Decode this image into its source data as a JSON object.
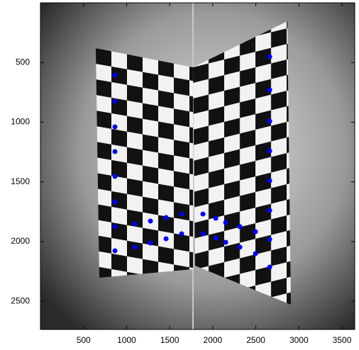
{
  "chart_data": {
    "type": "scatter",
    "x": [
      865,
      865,
      865,
      865,
      865,
      865,
      865,
      865,
      1096,
      1277,
      1458,
      1639,
      1096,
      1277,
      1458,
      1639,
      1886,
      2035,
      2150,
      2315,
      2496,
      1886,
      2035,
      2150,
      2315,
      2496,
      2661,
      2661,
      2661,
      2661,
      2661,
      2661,
      2661,
      2661
    ],
    "y": [
      605,
      825,
      1039,
      1246,
      1454,
      1668,
      1875,
      2077,
      1852,
      1828,
      1798,
      1769,
      2047,
      2012,
      1976,
      1935,
      1769,
      1804,
      1840,
      1875,
      1917,
      1935,
      1970,
      2006,
      2047,
      2101,
      451,
      730,
      991,
      1240,
      1490,
      1739,
      1982,
      2214
    ],
    "color": "#0000ff",
    "xlim": [
      0,
      3648
    ],
    "ylim": [
      0,
      2736
    ],
    "y_reversed": true,
    "xticks": [
      500,
      1000,
      1500,
      2000,
      2500,
      3000,
      3500
    ],
    "yticks": [
      500,
      1000,
      1500,
      2000,
      2500
    ]
  }
}
